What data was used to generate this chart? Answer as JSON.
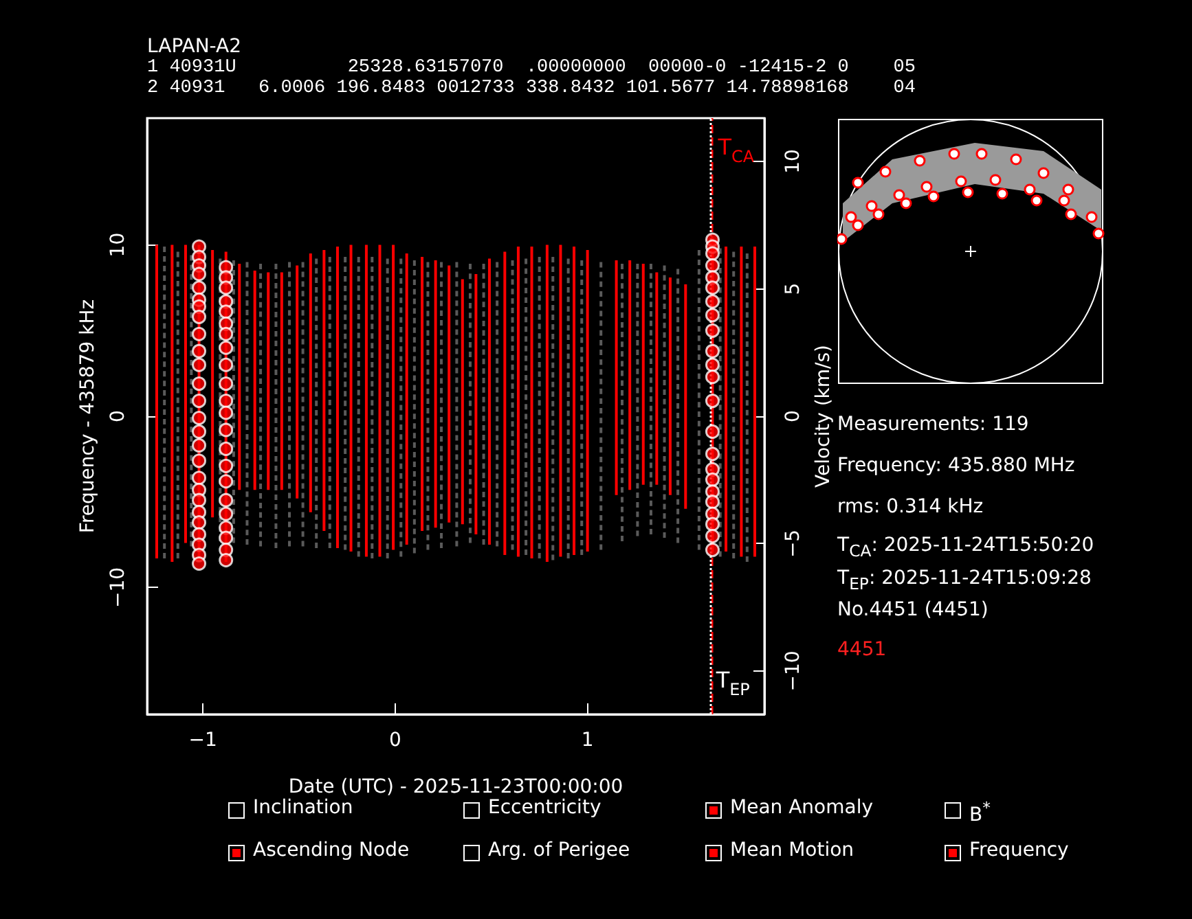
{
  "chart_data": {
    "type": "line",
    "title": "LAPAN-A2",
    "subtitle": "1 40931U          25328.63157070  .00000000  00000-0 -12415-2 0    05\n2 40931   6.0006 196.8483 0012733 338.8432 101.5677 14.78898168    04",
    "xlabel": "Date (UTC) - 2025-11-23T00:00:00",
    "ylabel": "Frequency - 435879 kHz",
    "y2label": "Velocity (km/s)",
    "xlim": [
      -1.29,
      1.92
    ],
    "xticks": [
      -1,
      0,
      1
    ],
    "ylim": [
      -17.4,
      17.4
    ],
    "yticks": [
      -10,
      0,
      10
    ],
    "y2lim": [
      -11.7,
      11.7
    ],
    "y2ticks": [
      -10,
      -5,
      0,
      5,
      10
    ],
    "grid": false,
    "legend": false,
    "marker": "none",
    "line_style": "solid",
    "series": [
      {
        "color": "#5a5a5a",
        "line_style": "dashed",
        "x": [
          -1.2,
          -1.2
        ],
        "values": [
          9.9,
          -8.3
        ]
      },
      {
        "color": "#5a5a5a",
        "line_style": "dashed",
        "x": [
          -1.13,
          -1.13
        ],
        "values": [
          9.6,
          -8.3
        ]
      },
      {
        "color": "#5a5a5a",
        "line_style": "dashed",
        "x": [
          -1.06,
          -1.06
        ],
        "values": [
          9.4,
          -7.6
        ]
      },
      {
        "color": "#5a5a5a",
        "line_style": "dashed",
        "x": [
          -0.91,
          -0.91
        ],
        "values": [
          9.2,
          -7.3
        ]
      },
      {
        "color": "#5a5a5a",
        "line_style": "dashed",
        "x": [
          -0.84,
          -0.84
        ],
        "values": [
          9.1,
          -7.4
        ]
      },
      {
        "color": "#5a5a5a",
        "line_style": "dashed",
        "x": [
          -0.77,
          -0.77
        ],
        "values": [
          9.0,
          -7.5
        ]
      },
      {
        "color": "#5a5a5a",
        "line_style": "dashed",
        "x": [
          -0.7,
          -0.7
        ],
        "values": [
          8.9,
          -7.6
        ]
      },
      {
        "color": "#5a5a5a",
        "line_style": "dashed",
        "x": [
          -0.62,
          -0.62
        ],
        "values": [
          8.9,
          -7.7
        ]
      },
      {
        "color": "#5a5a5a",
        "line_style": "dashed",
        "x": [
          -0.55,
          -0.55
        ],
        "values": [
          9.0,
          -7.6
        ]
      },
      {
        "color": "#5a5a5a",
        "line_style": "dashed",
        "x": [
          -0.48,
          -0.48
        ],
        "values": [
          9.0,
          -7.6
        ]
      },
      {
        "color": "#5a5a5a",
        "line_style": "dashed",
        "x": [
          -0.41,
          -0.41
        ],
        "values": [
          9.2,
          -7.7
        ]
      },
      {
        "color": "#5a5a5a",
        "line_style": "dashed",
        "x": [
          -0.34,
          -0.34
        ],
        "values": [
          9.3,
          -7.7
        ]
      },
      {
        "color": "#5a5a5a",
        "line_style": "dashed",
        "x": [
          -0.26,
          -0.26
        ],
        "values": [
          9.3,
          -7.8
        ]
      },
      {
        "color": "#5a5a5a",
        "line_style": "dashed",
        "x": [
          -0.19,
          -0.19
        ],
        "values": [
          9.3,
          -8.2
        ]
      },
      {
        "color": "#5a5a5a",
        "line_style": "dashed",
        "x": [
          -0.12,
          -0.12
        ],
        "values": [
          9.3,
          -8.3
        ]
      },
      {
        "color": "#5a5a5a",
        "line_style": "dashed",
        "x": [
          -0.04,
          -0.04
        ],
        "values": [
          9.2,
          -8.3
        ]
      },
      {
        "color": "#5a5a5a",
        "line_style": "dashed",
        "x": [
          0.03,
          0.03
        ],
        "values": [
          9.2,
          -8.2
        ]
      },
      {
        "color": "#5a5a5a",
        "line_style": "dashed",
        "x": [
          0.1,
          0.1
        ],
        "values": [
          9.1,
          -8.0
        ]
      },
      {
        "color": "#5a5a5a",
        "line_style": "dashed",
        "x": [
          0.17,
          0.17
        ],
        "values": [
          9.0,
          -7.8
        ]
      },
      {
        "color": "#5a5a5a",
        "line_style": "dashed",
        "x": [
          0.24,
          0.24
        ],
        "values": [
          9.0,
          -7.7
        ]
      },
      {
        "color": "#5a5a5a",
        "line_style": "dashed",
        "x": [
          0.32,
          0.32
        ],
        "values": [
          9.0,
          -7.6
        ]
      },
      {
        "color": "#5a5a5a",
        "line_style": "dashed",
        "x": [
          0.39,
          0.39
        ],
        "values": [
          8.9,
          -7.4
        ]
      },
      {
        "color": "#5a5a5a",
        "line_style": "dashed",
        "x": [
          0.46,
          0.46
        ],
        "values": [
          8.9,
          -7.5
        ]
      },
      {
        "color": "#5a5a5a",
        "line_style": "dashed",
        "x": [
          0.53,
          0.53
        ],
        "values": [
          9.0,
          -7.6
        ]
      },
      {
        "color": "#5a5a5a",
        "line_style": "dashed",
        "x": [
          0.61,
          0.61
        ],
        "values": [
          9.1,
          -7.8
        ]
      },
      {
        "color": "#5a5a5a",
        "line_style": "dashed",
        "x": [
          0.68,
          0.68
        ],
        "values": [
          9.2,
          -8.1
        ]
      },
      {
        "color": "#5a5a5a",
        "line_style": "dashed",
        "x": [
          0.75,
          0.75
        ],
        "values": [
          9.3,
          -8.3
        ]
      },
      {
        "color": "#5a5a5a",
        "line_style": "dashed",
        "x": [
          0.82,
          0.82
        ],
        "values": [
          9.3,
          -8.4
        ]
      },
      {
        "color": "#5a5a5a",
        "line_style": "dashed",
        "x": [
          0.9,
          0.9
        ],
        "values": [
          9.2,
          -8.3
        ]
      },
      {
        "color": "#5a5a5a",
        "line_style": "dashed",
        "x": [
          0.97,
          0.97
        ],
        "values": [
          9.1,
          -8.1
        ]
      },
      {
        "color": "#5a5a5a",
        "line_style": "dashed",
        "x": [
          1.07,
          1.07
        ],
        "values": [
          9.0,
          -7.8
        ]
      },
      {
        "color": "#5a5a5a",
        "line_style": "dashed",
        "x": [
          1.18,
          1.18
        ],
        "values": [
          8.9,
          -7.3
        ]
      },
      {
        "color": "#5a5a5a",
        "line_style": "dashed",
        "x": [
          1.26,
          1.26
        ],
        "values": [
          8.9,
          -7.0
        ]
      },
      {
        "color": "#5a5a5a",
        "line_style": "dashed",
        "x": [
          1.33,
          1.33
        ],
        "values": [
          8.9,
          -6.9
        ]
      },
      {
        "color": "#5a5a5a",
        "line_style": "dashed",
        "x": [
          1.4,
          1.4
        ],
        "values": [
          8.8,
          -7.1
        ]
      },
      {
        "color": "#5a5a5a",
        "line_style": "dashed",
        "x": [
          1.47,
          1.47
        ],
        "values": [
          8.6,
          -7.4
        ]
      },
      {
        "color": "#5a5a5a",
        "line_style": "dashed",
        "x": [
          1.58,
          1.58
        ],
        "values": [
          9.7,
          -7.8
        ]
      },
      {
        "color": "#5a5a5a",
        "line_style": "dashed",
        "x": [
          1.69,
          1.69
        ],
        "values": [
          9.8,
          -8.2
        ]
      },
      {
        "color": "#5a5a5a",
        "line_style": "dashed",
        "x": [
          1.76,
          1.76
        ],
        "values": [
          9.6,
          -8.3
        ]
      },
      {
        "color": "#5a5a5a",
        "line_style": "dashed",
        "x": [
          1.83,
          1.83
        ],
        "values": [
          9.5,
          -8.5
        ]
      },
      {
        "color": "#ff0000",
        "x": [
          -1.24,
          -1.24
        ],
        "values": [
          10.0,
          -8.3
        ]
      },
      {
        "color": "#ff0000",
        "x": [
          -1.16,
          -1.16
        ],
        "values": [
          10.0,
          -8.5
        ]
      },
      {
        "color": "#ff0000",
        "x": [
          -1.09,
          -1.09
        ],
        "values": [
          10.0,
          -7.4
        ]
      },
      {
        "color": "#ff0000",
        "x": [
          -1.02,
          -1.02
        ],
        "values": [
          10.0,
          -8.5
        ]
      },
      {
        "color": "#ff0000",
        "x": [
          -0.95,
          -0.95
        ],
        "values": [
          9.7,
          -5.9
        ]
      },
      {
        "color": "#ff0000",
        "x": [
          -0.88,
          -0.88
        ],
        "values": [
          9.6,
          -8.5
        ]
      },
      {
        "color": "#ff0000",
        "x": [
          -0.81,
          -0.81
        ],
        "values": [
          8.9,
          -4.3
        ]
      },
      {
        "color": "#ff0000",
        "x": [
          -0.73,
          -0.73
        ],
        "values": [
          8.5,
          -4.3
        ]
      },
      {
        "color": "#ff0000",
        "x": [
          -0.66,
          -0.66
        ],
        "values": [
          8.4,
          -4.3
        ]
      },
      {
        "color": "#ff0000",
        "x": [
          -0.59,
          -0.59
        ],
        "values": [
          8.4,
          -4.3
        ]
      },
      {
        "color": "#ff0000",
        "x": [
          -0.51,
          -0.51
        ],
        "values": [
          8.8,
          -4.8
        ]
      },
      {
        "color": "#ff0000",
        "x": [
          -0.44,
          -0.44
        ],
        "values": [
          9.5,
          -5.6
        ]
      },
      {
        "color": "#ff0000",
        "x": [
          -0.37,
          -0.37
        ],
        "values": [
          9.7,
          -6.7
        ]
      },
      {
        "color": "#ff0000",
        "x": [
          -0.3,
          -0.3
        ],
        "values": [
          9.9,
          -7.7
        ]
      },
      {
        "color": "#ff0000",
        "x": [
          -0.23,
          -0.23
        ],
        "values": [
          10.0,
          -7.9
        ]
      },
      {
        "color": "#ff0000",
        "x": [
          -0.15,
          -0.15
        ],
        "values": [
          10.0,
          -8.2
        ]
      },
      {
        "color": "#ff0000",
        "x": [
          -0.08,
          -0.08
        ],
        "values": [
          10.0,
          -8.2
        ]
      },
      {
        "color": "#ff0000",
        "x": [
          -0.01,
          -0.01
        ],
        "values": [
          10.0,
          -7.8
        ]
      },
      {
        "color": "#ff0000",
        "x": [
          0.06,
          0.06
        ],
        "values": [
          9.5,
          -7.5
        ]
      },
      {
        "color": "#ff0000",
        "x": [
          0.14,
          0.14
        ],
        "values": [
          9.3,
          -6.7
        ]
      },
      {
        "color": "#ff0000",
        "x": [
          0.21,
          0.21
        ],
        "values": [
          9.1,
          -6.5
        ]
      },
      {
        "color": "#ff0000",
        "x": [
          0.28,
          0.28
        ],
        "values": [
          8.8,
          -6.2
        ]
      },
      {
        "color": "#ff0000",
        "x": [
          0.35,
          0.35
        ],
        "values": [
          8.0,
          -6.3
        ]
      },
      {
        "color": "#ff0000",
        "x": [
          0.42,
          0.42
        ],
        "values": [
          8.3,
          -6.9
        ]
      },
      {
        "color": "#ff0000",
        "x": [
          0.49,
          0.49
        ],
        "values": [
          9.2,
          -7.5
        ]
      },
      {
        "color": "#ff0000",
        "x": [
          0.57,
          0.57
        ],
        "values": [
          9.6,
          -8.1
        ]
      },
      {
        "color": "#ff0000",
        "x": [
          0.64,
          0.64
        ],
        "values": [
          9.9,
          -8.2
        ]
      },
      {
        "color": "#ff0000",
        "x": [
          0.71,
          0.71
        ],
        "values": [
          9.9,
          -8.3
        ]
      },
      {
        "color": "#ff0000",
        "x": [
          0.79,
          0.79
        ],
        "values": [
          10.0,
          -8.5
        ]
      },
      {
        "color": "#ff0000",
        "x": [
          0.86,
          0.86
        ],
        "values": [
          10.0,
          -8.2
        ]
      },
      {
        "color": "#ff0000",
        "x": [
          0.93,
          0.93
        ],
        "values": [
          9.9,
          -8.1
        ]
      },
      {
        "color": "#ff0000",
        "x": [
          1.0,
          1.0
        ],
        "values": [
          9.7,
          -7.9
        ]
      },
      {
        "color": "#ff0000",
        "x": [
          1.15,
          1.15
        ],
        "values": [
          9.1,
          -4.6
        ]
      },
      {
        "color": "#ff0000",
        "x": [
          1.22,
          1.22
        ],
        "values": [
          9.1,
          -4.3
        ]
      },
      {
        "color": "#ff0000",
        "x": [
          1.29,
          1.29
        ],
        "values": [
          8.9,
          -4.0
        ]
      },
      {
        "color": "#ff0000",
        "x": [
          1.36,
          1.36
        ],
        "values": [
          8.4,
          -4.0
        ]
      },
      {
        "color": "#ff0000",
        "x": [
          1.43,
          1.43
        ],
        "values": [
          8.1,
          -4.6
        ]
      },
      {
        "color": "#ff0000",
        "x": [
          1.51,
          1.51
        ],
        "values": [
          7.7,
          -5.4
        ]
      },
      {
        "color": "#ff0000",
        "x": [
          1.65,
          1.65
        ],
        "values": [
          10.4,
          -7.9
        ]
      },
      {
        "color": "#ff0000",
        "x": [
          1.72,
          1.72
        ],
        "values": [
          9.9,
          -7.9
        ]
      },
      {
        "color": "#ff0000",
        "x": [
          1.8,
          1.8
        ],
        "values": [
          9.9,
          -8.2
        ]
      },
      {
        "color": "#ff0000",
        "x": [
          1.87,
          1.87
        ],
        "values": [
          9.9,
          -8.2
        ]
      },
      {
        "type": "scatter",
        "marker": "circle",
        "color": "#ff0000",
        "x": [
          -1.02,
          -1.02,
          -1.02,
          -1.02,
          -1.02,
          -1.02,
          -1.02,
          -1.02,
          -1.02,
          -1.02,
          -1.02,
          -1.02,
          -1.02,
          -1.02,
          -1.02,
          -1.02,
          -1.02,
          -1.02,
          -1.02,
          -1.02,
          -1.02,
          -1.02,
          -1.02,
          -1.02,
          -1.02,
          -1.02,
          -0.88,
          -0.88,
          -0.88,
          -0.88,
          -0.88,
          -0.88,
          -0.88,
          -0.88,
          -0.88,
          -0.88,
          -0.88,
          -0.88,
          -0.88,
          -0.88,
          -0.88,
          -0.88,
          -0.88,
          -0.88,
          -0.88,
          -0.88,
          -0.88,
          -0.88,
          1.65,
          1.65,
          1.65,
          1.65,
          1.65,
          1.65,
          1.65,
          1.65,
          1.65,
          1.65,
          1.65,
          1.65,
          1.65,
          1.65,
          1.65,
          1.65,
          1.65,
          1.65,
          1.65,
          1.65,
          1.65,
          1.65,
          1.65
        ],
        "values": [
          9.9,
          9.3,
          8.8,
          8.3,
          7.5,
          6.8,
          6.4,
          5.8,
          4.8,
          3.8,
          3.0,
          1.9,
          0.9,
          -0.1,
          -0.9,
          -1.7,
          -2.6,
          -3.6,
          -4.3,
          -4.9,
          -5.6,
          -6.2,
          -6.9,
          -7.5,
          -8.1,
          -8.6,
          8.7,
          8.1,
          7.5,
          6.7,
          6.1,
          5.4,
          4.8,
          4.0,
          3.0,
          1.9,
          0.9,
          0.2,
          -0.8,
          -1.9,
          -2.9,
          -3.8,
          -4.9,
          -5.7,
          -6.5,
          -7.1,
          -7.8,
          -8.4,
          10.3,
          9.9,
          9.5,
          8.8,
          8.1,
          7.5,
          6.7,
          5.9,
          5.0,
          3.8,
          3.0,
          2.3,
          0.9,
          -0.9,
          -2.2,
          -3.1,
          -3.7,
          -4.4,
          -5.0,
          -5.7,
          -6.3,
          -7.0,
          -7.8
        ]
      }
    ],
    "ref_lines": [
      {
        "axis": "x",
        "value": 1.65,
        "label": "T$_{CA}$",
        "color": "#ff0000",
        "line_style": "dashed"
      },
      {
        "axis": "x",
        "value": 1.64,
        "label": "T$_{EP}$",
        "color": "#ffffff",
        "line_style": "dotted"
      }
    ],
    "annotations": [
      "Measurements: 119",
      "Frequency: 435.880 MHz",
      "rms: 0.314 kHz",
      "T$_{CA}$: 2025-11-24T15:50:20",
      "T$_{EP}$: 2025-11-24T15:09:28",
      "No.4451 (4451)",
      "4451",
      "Inclination",
      "Eccentricity",
      "Mean Anomaly",
      "B$^{*}$",
      "Ascending Node",
      "Arg. of Perigee",
      "Mean Motion",
      "Frequency"
    ]
  }
}
